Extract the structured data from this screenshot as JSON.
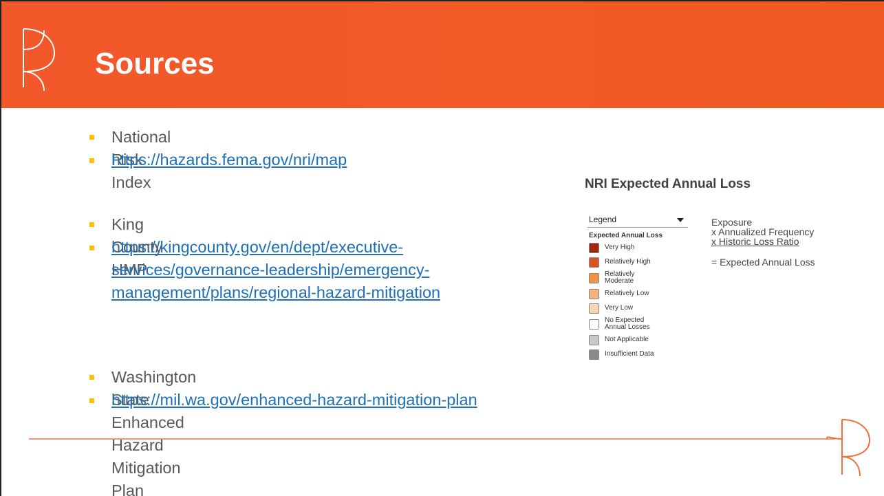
{
  "header": {
    "title": "Sources"
  },
  "bullets": [
    {
      "name": "National Risk Index",
      "url": "https://hazards.fema.gov/nri/map"
    },
    {
      "name": "King County HMP",
      "url": "https://kingcounty.gov/en/dept/executive-services/governance-leadership/emergency-management/plans/regional-hazard-mitigation"
    },
    {
      "name": "Washington State Enhanced Hazard Mitigation Plan",
      "url": "https://mil.wa.gov/enhanced-hazard-mitigation-plan"
    }
  ],
  "panel": {
    "title": "NRI Expected Annual Loss",
    "legend": {
      "header": "Legend",
      "subtitle": "Expected Annual Loss",
      "items": [
        {
          "label": "Very High",
          "color": "#9e2a0b"
        },
        {
          "label": "Relatively High",
          "color": "#d9541e"
        },
        {
          "label": "Relatively Moderate",
          "color": "#f39147"
        },
        {
          "label": "Relatively Low",
          "color": "#f7b27a"
        },
        {
          "label": "Very Low",
          "color": "#fbd3ae"
        },
        {
          "label": "No Expected Annual Losses",
          "color": "#ffffff"
        },
        {
          "label": "Not Applicable",
          "color": "#c8c8c8"
        },
        {
          "label": "Insufficient Data",
          "color": "#8a8a8a"
        }
      ]
    },
    "formula": [
      "Exposure",
      "x Annualized Frequency",
      "x Historic Loss Ratio",
      "= Expected Annual Loss"
    ]
  }
}
